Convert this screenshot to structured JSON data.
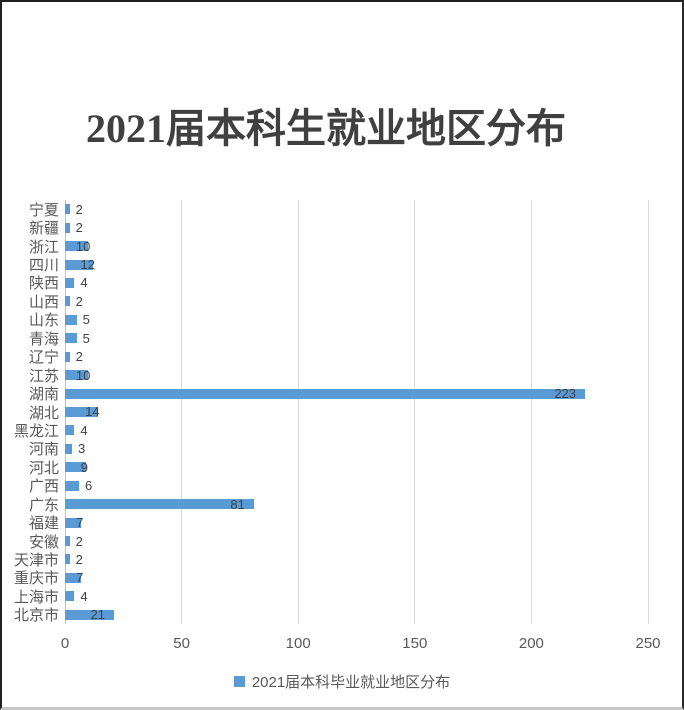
{
  "chart_data": {
    "type": "bar",
    "orientation": "horizontal",
    "title": "2021届本科生就业地区分布",
    "legend_label": "2021届本科毕业就业地区分布",
    "legend_position": "bottom",
    "category_order": "top-to-bottom",
    "categories": [
      "宁夏",
      "新疆",
      "浙江",
      "四川",
      "陕西",
      "山西",
      "山东",
      "青海",
      "辽宁",
      "江苏",
      "湖南",
      "湖北",
      "黑龙江",
      "河南",
      "河北",
      "广西",
      "广东",
      "福建",
      "安徽",
      "天津市",
      "重庆市",
      "上海市",
      "北京市"
    ],
    "values": [
      2,
      2,
      10,
      12,
      4,
      2,
      5,
      5,
      2,
      10,
      223,
      14,
      4,
      3,
      9,
      6,
      81,
      7,
      2,
      2,
      7,
      4,
      21
    ],
    "data_labels": true,
    "xlim": [
      0,
      250
    ],
    "x_ticks": [
      0,
      50,
      100,
      150,
      200,
      250
    ],
    "grid": "vertical-gridlines-only",
    "colors": {
      "bar": "#5B9BD5",
      "gridline": "#D9D9D9",
      "axis_line": "#BFBFBF",
      "axis_text": "#595959",
      "value_label_text": "#404040",
      "title_text": "#404040"
    }
  }
}
